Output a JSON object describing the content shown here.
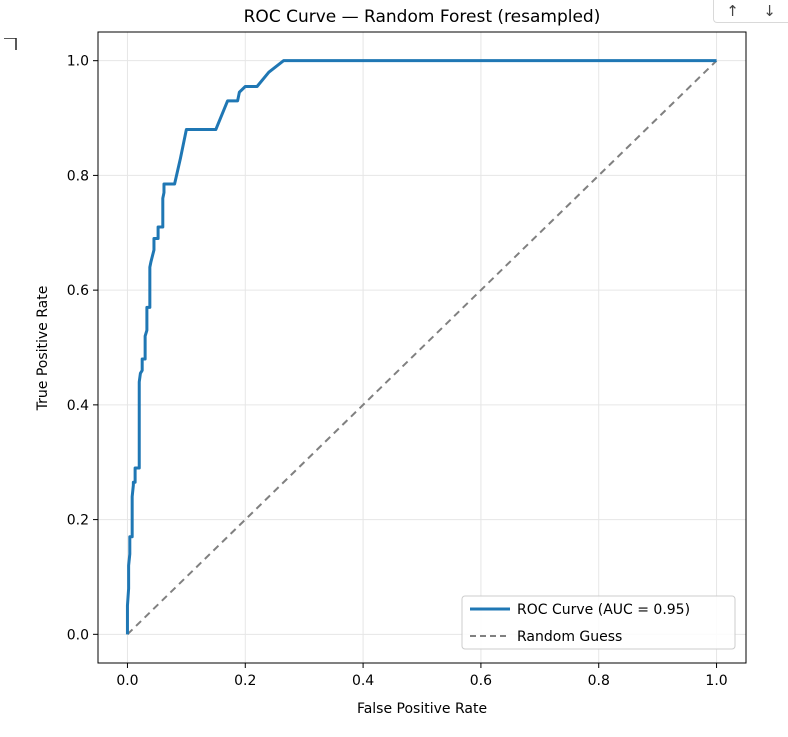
{
  "toolbar": {
    "up_icon": "↑",
    "down_icon": "↓"
  },
  "chart_data": {
    "type": "line",
    "title": "ROC Curve — Random Forest (resampled)",
    "xlabel": "False Positive Rate",
    "ylabel": "True Positive Rate",
    "xlim": [
      -0.05,
      1.05
    ],
    "ylim": [
      -0.05,
      1.05
    ],
    "xticks": [
      0.0,
      0.2,
      0.4,
      0.6,
      0.8,
      1.0
    ],
    "yticks": [
      0.0,
      0.2,
      0.4,
      0.6,
      0.8,
      1.0
    ],
    "xtick_labels": [
      "0.0",
      "0.2",
      "0.4",
      "0.6",
      "0.8",
      "1.0"
    ],
    "ytick_labels": [
      "0.0",
      "0.2",
      "0.4",
      "0.6",
      "0.8",
      "1.0"
    ],
    "grid": true,
    "legend_position": "lower-right",
    "series": [
      {
        "name": "ROC Curve (AUC = 0.95)",
        "color": "#1f77b4",
        "style": "solid",
        "x": [
          0.0,
          0.0,
          0.002,
          0.002,
          0.004,
          0.004,
          0.008,
          0.008,
          0.01,
          0.01,
          0.013,
          0.013,
          0.02,
          0.02,
          0.022,
          0.022,
          0.025,
          0.025,
          0.03,
          0.03,
          0.033,
          0.033,
          0.038,
          0.038,
          0.04,
          0.04,
          0.045,
          0.045,
          0.052,
          0.052,
          0.06,
          0.06,
          0.062,
          0.062,
          0.07,
          0.08,
          0.09,
          0.1,
          0.15,
          0.17,
          0.187,
          0.19,
          0.2,
          0.22,
          0.24,
          0.265,
          1.0
        ],
        "y": [
          0.0,
          0.05,
          0.08,
          0.12,
          0.14,
          0.17,
          0.17,
          0.24,
          0.26,
          0.265,
          0.265,
          0.29,
          0.29,
          0.44,
          0.455,
          0.455,
          0.46,
          0.48,
          0.48,
          0.52,
          0.53,
          0.57,
          0.57,
          0.64,
          0.65,
          0.65,
          0.67,
          0.69,
          0.69,
          0.71,
          0.71,
          0.76,
          0.77,
          0.785,
          0.785,
          0.785,
          0.83,
          0.88,
          0.88,
          0.93,
          0.93,
          0.945,
          0.955,
          0.955,
          0.98,
          1.0,
          1.0
        ]
      },
      {
        "name": "Random Guess",
        "color": "#808080",
        "style": "dashed",
        "x": [
          0.0,
          1.0
        ],
        "y": [
          0.0,
          1.0
        ]
      }
    ]
  }
}
